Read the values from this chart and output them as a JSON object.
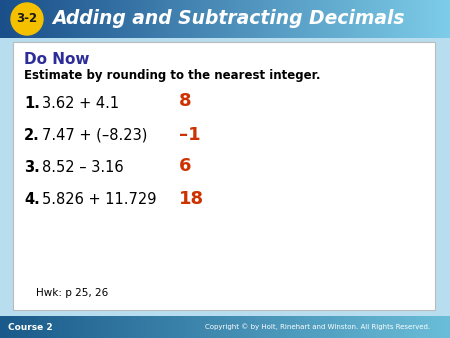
{
  "title": "Adding and Subtracting Decimals",
  "lesson_num": "3-2",
  "header_bg_left": "#1a4f8a",
  "header_bg_right": "#7dcce8",
  "header_text_color": "#ffffff",
  "badge_bg_color": "#f5c000",
  "badge_text_color": "#1a1a1a",
  "footer_bg_left": "#1a5a8a",
  "footer_bg_right": "#6abdd8",
  "footer_left": "Course 2",
  "footer_right": "Copyright © by Holt, Rinehart and Winston. All Rights Reserved.",
  "content_border": "#bbbbbb",
  "do_now_label": "Do Now",
  "do_now_color": "#2d2d99",
  "subtitle": "Estimate by rounding to the nearest integer.",
  "problems": [
    {
      "num": "1.",
      "expr": "3.62 + 4.1",
      "answer": "8"
    },
    {
      "num": "2.",
      "expr": "7.47 + (–8.23)",
      "answer": "–1"
    },
    {
      "num": "3.",
      "expr": "8.52 – 3.16",
      "answer": "6"
    },
    {
      "num": "4.",
      "expr": "5.826 + 11.729",
      "answer": "18"
    }
  ],
  "answer_color": "#cc3300",
  "hwk_text": "Hwk: p 25, 26",
  "fig_width": 4.5,
  "fig_height": 3.38,
  "dpi": 100
}
